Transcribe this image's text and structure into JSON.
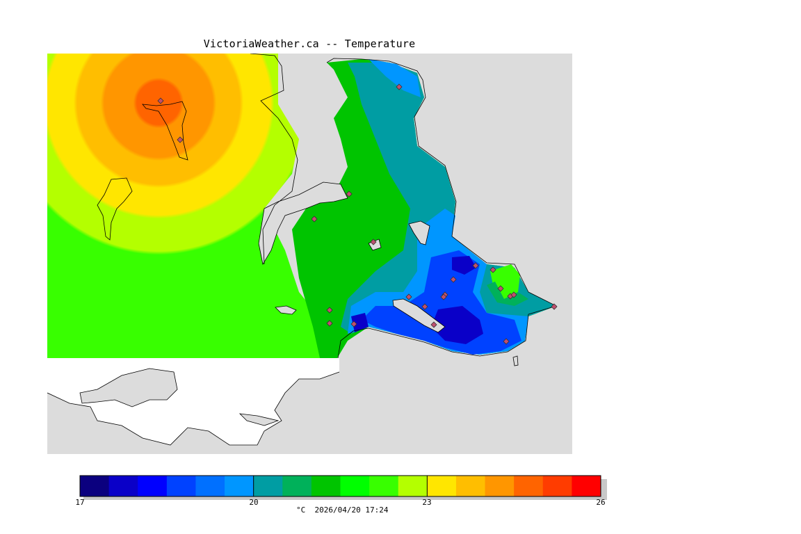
{
  "header": {
    "title": "VictoriaWeather.ca -- Temperature"
  },
  "legend": {
    "min": 17,
    "max": 26,
    "ticks": [
      "17",
      "20",
      "23",
      "26"
    ],
    "unit_caption": "°C  2026/04/20 17:24",
    "colors": [
      "#0b007f",
      "#0a00c8",
      "#0000ff",
      "#0042ff",
      "#0070ff",
      "#0096ff",
      "#009da3",
      "#00b15a",
      "#00c400",
      "#00ff00",
      "#38ff00",
      "#b4ff00",
      "#ffe600",
      "#ffbe00",
      "#ff9600",
      "#ff6400",
      "#ff3c00",
      "#ff0000"
    ]
  },
  "map": {
    "background_color": "#dcdcdc",
    "station_count": 22
  }
}
